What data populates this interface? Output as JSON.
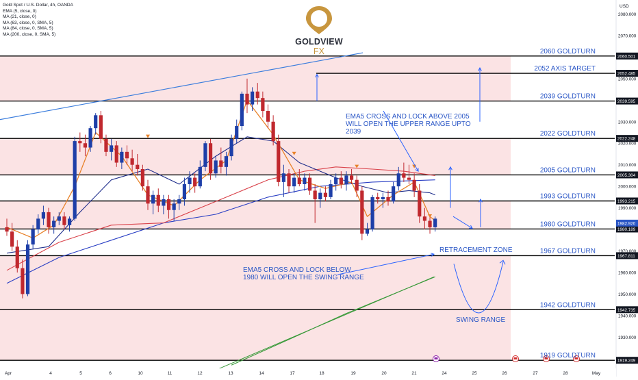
{
  "legend": {
    "symbol": "Gold Spot / U.S. Dollar, 4h, OANDA",
    "lines": [
      "EMA (5, close, 0)",
      "MA (21, close, 0)",
      "MA (63, close, 0, SMA, 5)",
      "MA (84, close, 0, SMA, 5)",
      "MA (200, close, 0, SMA, 5)"
    ]
  },
  "logo": {
    "brand": "GOLDVIEW",
    "suffix": "FX"
  },
  "colors": {
    "up": "#1e3fa8",
    "down": "#c0282e",
    "ema5": "#e8822a",
    "ma21": "#1f2e8c",
    "ma63": "#d9424a",
    "ma84": "#2a3fc4",
    "ma200": "#3a9a3a",
    "zone": "#fbe3e4",
    "annotation": "#2962ff",
    "trendline": "#3b7ddd"
  },
  "chart_data": {
    "type": "candlestick",
    "y_axis_label": "USD",
    "ylim": [
      1915.5,
      2086.5
    ],
    "y_ticks": [
      1920,
      1930,
      1940,
      1950,
      1960,
      1970,
      1980,
      1990,
      2000,
      2010,
      2020,
      2030,
      2040,
      2050,
      2060,
      2070,
      2080
    ],
    "x_ticks": [
      "Apr",
      "4",
      "5",
      "6",
      "10",
      "11",
      "12",
      "13",
      "14",
      "17",
      "18",
      "19",
      "20",
      "21",
      "24",
      "25",
      "26",
      "27",
      "28",
      "May"
    ],
    "price_levels": [
      {
        "price": "2060.501",
        "value": 2060.501,
        "label": "2060 GOLDTURN"
      },
      {
        "price": "2052.485",
        "value": 2052.485,
        "label": "2052 AXIS TARGET"
      },
      {
        "price": "2039.595",
        "value": 2039.595,
        "label": "2039 GOLDTURN"
      },
      {
        "price": "2022.248",
        "value": 2022.248,
        "label": "2022 GOLDTURN"
      },
      {
        "price": "2005.304",
        "value": 2005.304,
        "label": "2005 GOLDTURN"
      },
      {
        "price": "1993.215",
        "value": 1993.215,
        "label": "1993 GOLDTURN"
      },
      {
        "price": "1980.189",
        "value": 1980.189,
        "label": "1980 GOLDTURN"
      },
      {
        "price": "1967.811",
        "value": 1967.811,
        "label": "1967 GOLDTURN"
      },
      {
        "price": "1942.735",
        "value": 1942.735,
        "label": "1942 GOLDTURN"
      },
      {
        "price": "1919.249",
        "value": 1919.249,
        "label": "1919 GOLDTURN"
      }
    ],
    "current_price": "1982.920",
    "current_value": 1982.92,
    "annotations": [
      "EMA5 CROSS AND LOCK ABOVE 2005\nWILL OPEN THE UPPER RANGE UPTO\n2039",
      "EMA5 CROSS AND LOCK BELOW\n1980 WILL OPEN THE SWING RANGE",
      "RETRACEMENT ZONE",
      "SWING RANGE"
    ],
    "candles": [
      [
        1981,
        1985,
        1977,
        1979
      ],
      [
        1979,
        1983,
        1970,
        1972
      ],
      [
        1972,
        1975,
        1960,
        1962
      ],
      [
        1962,
        1966,
        1948,
        1950
      ],
      [
        1950,
        1975,
        1949,
        1973
      ],
      [
        1973,
        1982,
        1971,
        1980
      ],
      [
        1980,
        1987,
        1978,
        1985
      ],
      [
        1985,
        1991,
        1982,
        1988
      ],
      [
        1988,
        1990,
        1978,
        1981
      ],
      [
        1981,
        1986,
        1978,
        1984
      ],
      [
        1984,
        1988,
        1982,
        1986
      ],
      [
        1986,
        1988,
        1980,
        1982
      ],
      [
        1982,
        1986,
        1979,
        1985
      ],
      [
        1985,
        2023,
        1984,
        2021
      ],
      [
        2021,
        2025,
        2016,
        2020
      ],
      [
        2020,
        2024,
        2014,
        2018
      ],
      [
        2018,
        2028,
        2016,
        2027
      ],
      [
        2027,
        2034,
        2024,
        2033
      ],
      [
        2033,
        2035,
        2020,
        2022
      ],
      [
        2022,
        2024,
        2014,
        2016
      ],
      [
        2016,
        2022,
        2012,
        2019
      ],
      [
        2019,
        2021,
        2009,
        2011
      ],
      [
        2011,
        2018,
        2008,
        2016
      ],
      [
        2016,
        2019,
        2010,
        2013
      ],
      [
        2013,
        2017,
        2007,
        2010
      ],
      [
        2010,
        2015,
        2005,
        2008
      ],
      [
        2008,
        2010,
        1998,
        2000
      ],
      [
        2000,
        2003,
        1989,
        1992
      ],
      [
        1992,
        1998,
        1987,
        1996
      ],
      [
        1996,
        1999,
        1988,
        1991
      ],
      [
        1991,
        1996,
        1987,
        1994
      ],
      [
        1994,
        1996,
        1985,
        1989
      ],
      [
        1989,
        1994,
        1984,
        1992
      ],
      [
        1992,
        1996,
        1989,
        1994
      ],
      [
        1994,
        2004,
        1991,
        2001
      ],
      [
        2001,
        2007,
        1997,
        2004
      ],
      [
        2004,
        2006,
        1997,
        2000
      ],
      [
        2000,
        2012,
        1999,
        2009
      ],
      [
        2009,
        2021,
        2007,
        2020
      ],
      [
        2020,
        2022,
        2003,
        2006
      ],
      [
        2006,
        2014,
        2004,
        2012
      ],
      [
        2012,
        2018,
        2006,
        2009
      ],
      [
        2009,
        2016,
        2005,
        2014
      ],
      [
        2014,
        2024,
        2012,
        2022
      ],
      [
        2022,
        2031,
        2020,
        2028
      ],
      [
        2028,
        2044,
        2026,
        2043
      ],
      [
        2043,
        2050,
        2034,
        2038
      ],
      [
        2038,
        2046,
        2035,
        2044
      ],
      [
        2044,
        2048,
        2038,
        2041
      ],
      [
        2041,
        2044,
        2032,
        2035
      ],
      [
        2035,
        2038,
        2027,
        2030
      ],
      [
        2030,
        2033,
        2019,
        2021
      ],
      [
        2021,
        2024,
        2000,
        2002
      ],
      [
        2002,
        2010,
        1995,
        2006
      ],
      [
        2006,
        2008,
        1997,
        2000
      ],
      [
        2000,
        2006,
        1997,
        2004
      ],
      [
        2004,
        2008,
        2000,
        2001
      ],
      [
        2001,
        2006,
        1998,
        2004
      ],
      [
        2004,
        2006,
        1996,
        1998
      ],
      [
        1998,
        2001,
        1983,
        1994
      ],
      [
        1994,
        1999,
        1990,
        1997
      ],
      [
        1997,
        2000,
        1993,
        1995
      ],
      [
        1995,
        2003,
        1994,
        2001
      ],
      [
        2001,
        2006,
        1998,
        2004
      ],
      [
        2004,
        2007,
        1999,
        2001
      ],
      [
        2001,
        2007,
        1998,
        2005
      ],
      [
        2005,
        2008,
        2001,
        2003
      ],
      [
        2003,
        2005,
        1995,
        1998
      ],
      [
        1998,
        2000,
        1975,
        1978
      ],
      [
        1978,
        1983,
        1977,
        1980
      ],
      [
        1980,
        1996,
        1979,
        1995
      ],
      [
        1995,
        1997,
        1992,
        1994
      ],
      [
        1994,
        1997,
        1990,
        1995
      ],
      [
        1995,
        1998,
        1991,
        1993
      ],
      [
        1993,
        2002,
        1992,
        2000
      ],
      [
        2000,
        2009,
        1998,
        2006
      ],
      [
        2006,
        2011,
        2002,
        2004
      ],
      [
        2004,
        2010,
        2001,
        2003
      ],
      [
        2003,
        2006,
        1995,
        1998
      ],
      [
        1998,
        2001,
        1983,
        1986
      ],
      [
        1986,
        1990,
        1980,
        1984
      ],
      [
        1984,
        1987,
        1978,
        1981
      ],
      [
        1981,
        1986,
        1979,
        1985
      ]
    ],
    "ema5": [
      [
        0,
        1981
      ],
      [
        5,
        1976
      ],
      [
        9,
        1982
      ],
      [
        13,
        2000
      ],
      [
        17,
        2025
      ],
      [
        22,
        2014
      ],
      [
        27,
        1996
      ],
      [
        32,
        1991
      ],
      [
        37,
        2003
      ],
      [
        42,
        2012
      ],
      [
        46,
        2040
      ],
      [
        51,
        2024
      ],
      [
        56,
        2003
      ],
      [
        61,
        1999
      ],
      [
        66,
        2002
      ],
      [
        69,
        1986
      ],
      [
        74,
        1996
      ],
      [
        78,
        2002
      ],
      [
        81,
        1986
      ],
      [
        82,
        1984
      ]
    ],
    "ma21": [
      [
        0,
        1969
      ],
      [
        8,
        1972
      ],
      [
        14,
        1988
      ],
      [
        20,
        2003
      ],
      [
        27,
        2008
      ],
      [
        33,
        2001
      ],
      [
        40,
        2014
      ],
      [
        46,
        2023
      ],
      [
        51,
        2021
      ],
      [
        56,
        2011
      ],
      [
        63,
        2004
      ],
      [
        68,
        2000
      ],
      [
        73,
        1997
      ],
      [
        77,
        1998
      ],
      [
        81,
        1997
      ],
      [
        82,
        1996
      ]
    ],
    "ma63": [
      [
        0,
        1961
      ],
      [
        10,
        1974
      ],
      [
        20,
        1982
      ],
      [
        30,
        1983
      ],
      [
        40,
        1993
      ],
      [
        50,
        2003
      ],
      [
        57,
        2007
      ],
      [
        63,
        2009
      ],
      [
        70,
        2008
      ],
      [
        76,
        2007
      ],
      [
        82,
        2005
      ]
    ],
    "ma84": [
      [
        0,
        1955
      ],
      [
        10,
        1967
      ],
      [
        20,
        1975
      ],
      [
        30,
        1983
      ],
      [
        40,
        1987
      ],
      [
        50,
        1995
      ],
      [
        60,
        2000
      ],
      [
        70,
        2002
      ],
      [
        82,
        2003
      ]
    ],
    "ma200": [
      [
        43,
        1917
      ],
      [
        55,
        1930
      ],
      [
        65,
        1941
      ],
      [
        75,
        1951
      ],
      [
        82,
        1958
      ]
    ]
  }
}
